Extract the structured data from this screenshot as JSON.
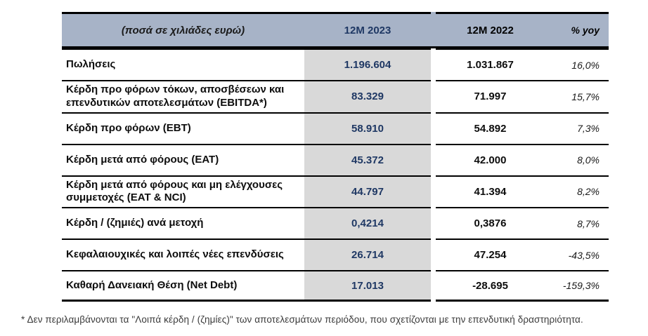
{
  "table": {
    "header": {
      "label": "(ποσά σε χιλιάδες ευρώ)",
      "col_2023": "12M 2023",
      "col_2022": "12M 2022",
      "col_yoy": "% yoy"
    },
    "rows": [
      {
        "label": "Πωλήσεις",
        "v2023": "1.196.604",
        "v2022": "1.031.867",
        "yoy": "16,0%"
      },
      {
        "label": "Κέρδη προ φόρων τόκων, αποσβέσεων και επενδυτικών αποτελεσμάτων (EBITDA*)",
        "v2023": "83.329",
        "v2022": "71.997",
        "yoy": "15,7%"
      },
      {
        "label": "Κέρδη προ φόρων (EBT)",
        "v2023": "58.910",
        "v2022": "54.892",
        "yoy": "7,3%"
      },
      {
        "label": "Κέρδη μετά από φόρους (EAT)",
        "v2023": "45.372",
        "v2022": "42.000",
        "yoy": "8,0%"
      },
      {
        "label": "Κέρδη μετά από φόρους και μη ελέγχουσες συμμετοχές (EAT & NCI)",
        "v2023": "44.797",
        "v2022": "41.394",
        "yoy": "8,2%"
      },
      {
        "label": "Κέρδη / (ζημιές) ανά μετοχή",
        "v2023": "0,4214",
        "v2022": "0,3876",
        "yoy": "8,7%"
      },
      {
        "label": "Κεφαλαιουχικές και λοιπές νέες επενδύσεις",
        "v2023": "26.714",
        "v2022": "47.254",
        "yoy": "-43,5%"
      },
      {
        "label": "Καθαρή Δανειακή Θέση (Net Debt)",
        "v2023": "17.013",
        "v2022": "-28.695",
        "yoy": "-159,3%"
      }
    ]
  },
  "footnote": "* Δεν περιλαμβάνονται τα \"Λοιπά κέρδη / (ζημίες)\" των αποτελεσμάτων περιόδου, που σχετίζονται με την επενδυτική δραστηριότητα.",
  "colors": {
    "header_bg": "#a7b3c7",
    "col_2023_bg": "#d9d9d9",
    "accent_navy": "#1f3864",
    "border": "#000000"
  }
}
